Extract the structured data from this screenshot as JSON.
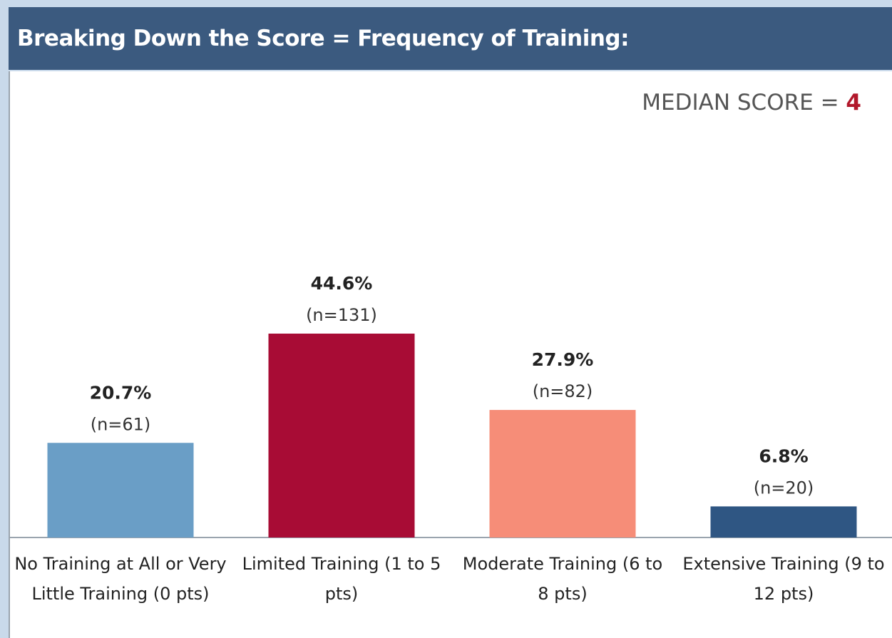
{
  "chart_data": {
    "type": "bar",
    "title": "Breaking Down the Score = Frequency of Training:",
    "annotation": {
      "label": "MEDIAN SCORE =",
      "value": "4"
    },
    "categories": [
      "No Training at All or Very Little Training (0 pts)",
      "Limited Training (1 to 5 pts)",
      "Moderate Training (6 to 8 pts)",
      "Extensive Training (9 to 12 pts)"
    ],
    "values": [
      20.7,
      44.6,
      27.9,
      6.8
    ],
    "value_labels": [
      "20.7%",
      "44.6%",
      "27.9%",
      "6.8%"
    ],
    "count_labels": [
      "(n=61)",
      "(n=131)",
      "(n=82)",
      "(n=20)"
    ],
    "colors": [
      "#6a9ec6",
      "#a80c35",
      "#f68d78",
      "#2f5683"
    ]
  }
}
